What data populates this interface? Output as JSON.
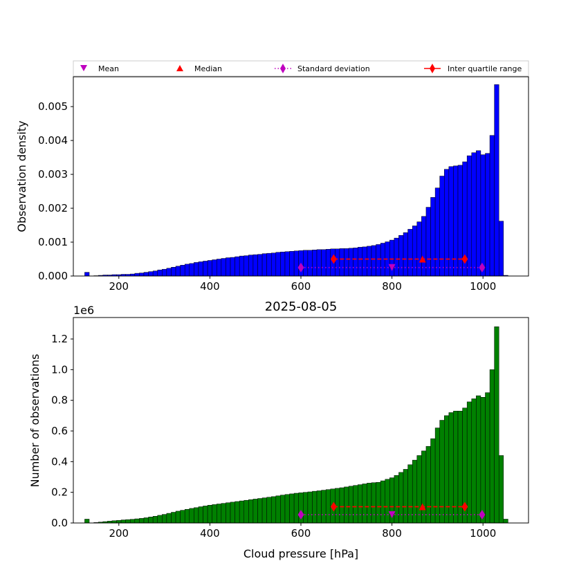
{
  "figure": {
    "title": "2025-08-05",
    "offset_text": "1e6"
  },
  "legend": {
    "items": [
      {
        "label": "Mean",
        "marker": "triangle-down",
        "color": "#bf00bf"
      },
      {
        "label": "Median",
        "marker": "triangle-up",
        "color": "#ff0000"
      },
      {
        "label": "Standard deviation",
        "marker": "diamond-dotted-line",
        "color": "#bf00bf"
      },
      {
        "label": "Inter quartile range",
        "marker": "diamond-solid-line",
        "color": "#ff0000"
      }
    ]
  },
  "colors": {
    "density_bars": "#0000ff",
    "count_bars": "#008000",
    "bar_edge": "#000000",
    "mean_std": "#bf00bf",
    "median_iqr": "#ff0000"
  },
  "chart_data": [
    {
      "type": "bar",
      "xlabel": "",
      "ylabel": "Observation density",
      "xlim": [
        100,
        1100
      ],
      "ylim": [
        0,
        0.00588
      ],
      "xticks": [
        "200",
        "400",
        "600",
        "800",
        "1000"
      ],
      "yticks": [
        "0.000",
        "0.001",
        "0.002",
        "0.003",
        "0.004",
        "0.005"
      ],
      "bin_width": 10,
      "bin_start": 125,
      "values": [
        0.00011,
        0.0,
        1e-05,
        2e-05,
        3e-05,
        3e-05,
        4e-05,
        4e-05,
        5e-05,
        5e-05,
        6e-05,
        8e-05,
        9e-05,
        0.00011,
        0.00013,
        0.00015,
        0.00018,
        0.0002,
        0.00023,
        0.00026,
        0.00029,
        0.00032,
        0.00035,
        0.00037,
        0.0004,
        0.00042,
        0.00044,
        0.00046,
        0.00048,
        0.0005,
        0.00052,
        0.00054,
        0.00055,
        0.00057,
        0.00059,
        0.0006,
        0.00062,
        0.00063,
        0.00064,
        0.00066,
        0.00067,
        0.00068,
        0.0007,
        0.00071,
        0.00072,
        0.00073,
        0.00074,
        0.00075,
        0.00076,
        0.00076,
        0.00077,
        0.00078,
        0.00078,
        0.00079,
        0.0008,
        0.0008,
        0.00081,
        0.00081,
        0.00082,
        0.00083,
        0.00085,
        0.00086,
        0.00088,
        0.0009,
        0.00093,
        0.00097,
        0.00101,
        0.00106,
        0.00112,
        0.0012,
        0.00128,
        0.00138,
        0.00148,
        0.0016,
        0.00176,
        0.00203,
        0.00232,
        0.0026,
        0.00295,
        0.00315,
        0.00323,
        0.00325,
        0.00327,
        0.00337,
        0.00355,
        0.00364,
        0.0037,
        0.00358,
        0.00362,
        0.00415,
        0.00565,
        0.00162,
        2e-05
      ],
      "mean": 800,
      "median": 867,
      "std_range": [
        600,
        998
      ],
      "iqr_range": [
        672,
        960
      ],
      "mean_std_y": 0.00025,
      "median_iqr_y": 0.0005
    },
    {
      "type": "bar",
      "xlabel": "Cloud pressure [hPa]",
      "ylabel": "Number of observations",
      "xlim": [
        100,
        1100
      ],
      "ylim": [
        0,
        1.34
      ],
      "y_multiplier": "1e6",
      "xticks": [
        "200",
        "400",
        "600",
        "800",
        "1000"
      ],
      "yticks": [
        "0.0",
        "0.2",
        "0.4",
        "0.6",
        "0.8",
        "1.0",
        "1.2"
      ],
      "bin_width": 10,
      "bin_start": 125,
      "values": [
        0.025,
        0.001,
        0.003,
        0.006,
        0.009,
        0.012,
        0.015,
        0.017,
        0.02,
        0.022,
        0.024,
        0.027,
        0.03,
        0.034,
        0.039,
        0.044,
        0.05,
        0.056,
        0.063,
        0.07,
        0.077,
        0.083,
        0.089,
        0.095,
        0.1,
        0.106,
        0.111,
        0.116,
        0.12,
        0.124,
        0.128,
        0.132,
        0.136,
        0.14,
        0.144,
        0.148,
        0.152,
        0.156,
        0.16,
        0.164,
        0.168,
        0.172,
        0.177,
        0.182,
        0.186,
        0.19,
        0.194,
        0.197,
        0.2,
        0.203,
        0.207,
        0.21,
        0.214,
        0.218,
        0.222,
        0.226,
        0.23,
        0.235,
        0.24,
        0.245,
        0.25,
        0.255,
        0.26,
        0.263,
        0.265,
        0.275,
        0.285,
        0.295,
        0.31,
        0.33,
        0.35,
        0.38,
        0.41,
        0.44,
        0.47,
        0.5,
        0.55,
        0.62,
        0.67,
        0.7,
        0.72,
        0.73,
        0.73,
        0.75,
        0.79,
        0.81,
        0.83,
        0.82,
        0.85,
        1.0,
        1.28,
        0.44,
        0.025
      ],
      "mean": 800,
      "median": 867,
      "std_range": [
        600,
        998
      ],
      "iqr_range": [
        672,
        960
      ],
      "mean_std_y": 0.054,
      "median_iqr_y": 0.106
    }
  ]
}
